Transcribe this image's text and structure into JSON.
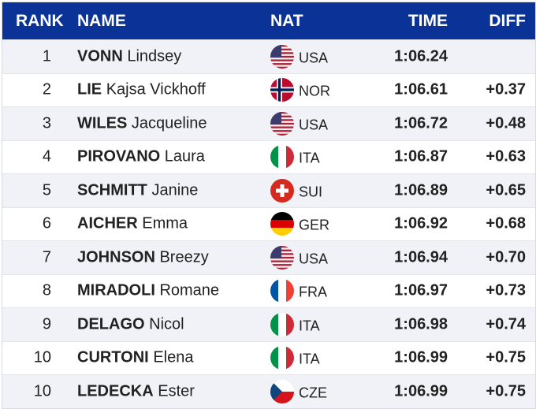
{
  "header": {
    "rank": "RANK",
    "name": "NAME",
    "nat": "NAT",
    "time": "TIME",
    "diff": "DIFF"
  },
  "colors": {
    "header_bg": "#0b3296"
  },
  "rows": [
    {
      "rank": "1",
      "last": "VONN",
      "first": "Lindsey",
      "nat": "USA",
      "flag": "usa-flag-icon",
      "time": "1:06.24",
      "diff": ""
    },
    {
      "rank": "2",
      "last": "LIE",
      "first": "Kajsa Vickhoff",
      "nat": "NOR",
      "flag": "norway-flag-icon",
      "time": "1:06.61",
      "diff": "+0.37"
    },
    {
      "rank": "3",
      "last": "WILES",
      "first": "Jacqueline",
      "nat": "USA",
      "flag": "usa-flag-icon",
      "time": "1:06.72",
      "diff": "+0.48"
    },
    {
      "rank": "4",
      "last": "PIROVANO",
      "first": "Laura",
      "nat": "ITA",
      "flag": "italy-flag-icon",
      "time": "1:06.87",
      "diff": "+0.63"
    },
    {
      "rank": "5",
      "last": "SCHMITT",
      "first": "Janine",
      "nat": "SUI",
      "flag": "switzerland-flag-icon",
      "time": "1:06.89",
      "diff": "+0.65"
    },
    {
      "rank": "6",
      "last": "AICHER",
      "first": "Emma",
      "nat": "GER",
      "flag": "germany-flag-icon",
      "time": "1:06.92",
      "diff": "+0.68"
    },
    {
      "rank": "7",
      "last": "JOHNSON",
      "first": "Breezy",
      "nat": "USA",
      "flag": "usa-flag-icon",
      "time": "1:06.94",
      "diff": "+0.70"
    },
    {
      "rank": "8",
      "last": "MIRADOLI",
      "first": "Romane",
      "nat": "FRA",
      "flag": "france-flag-icon",
      "time": "1:06.97",
      "diff": "+0.73"
    },
    {
      "rank": "9",
      "last": "DELAGO",
      "first": "Nicol",
      "nat": "ITA",
      "flag": "italy-flag-icon",
      "time": "1:06.98",
      "diff": "+0.74"
    },
    {
      "rank": "10",
      "last": "CURTONI",
      "first": "Elena",
      "nat": "ITA",
      "flag": "italy-flag-icon",
      "time": "1:06.99",
      "diff": "+0.75"
    },
    {
      "rank": "10",
      "last": "LEDECKA",
      "first": "Ester",
      "nat": "CZE",
      "flag": "czech-flag-icon",
      "time": "1:06.99",
      "diff": "+0.75"
    }
  ]
}
